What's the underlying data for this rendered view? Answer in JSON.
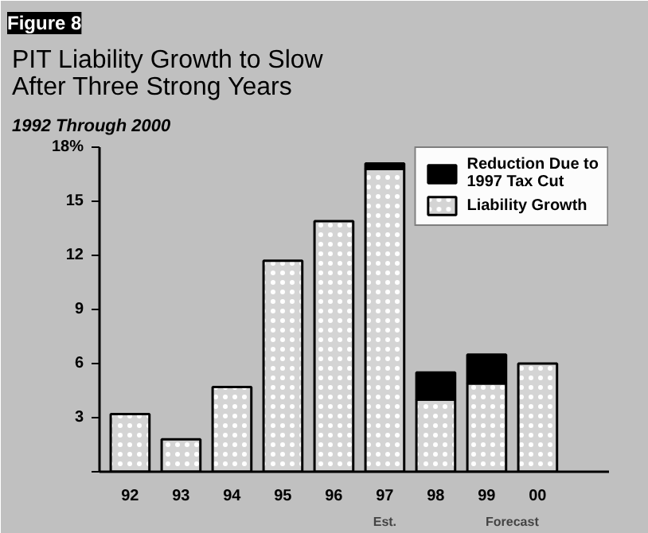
{
  "chart_data": {
    "type": "bar",
    "stacked": true,
    "title": "PIT Liability Growth to Slow\nAfter Three Strong Years",
    "subtitle": "1992 Through 2000",
    "annotations": [
      "Figure 8",
      "Est.",
      "Forecast"
    ],
    "categories": [
      "92",
      "93",
      "94",
      "95",
      "96",
      "97",
      "98",
      "99",
      "00"
    ],
    "series": [
      {
        "name": "Liability Growth",
        "color": "#d4d4d4",
        "values": [
          3.2,
          1.8,
          4.7,
          11.7,
          13.9,
          16.8,
          4.0,
          4.9,
          6.0
        ]
      },
      {
        "name": "Reduction Due to\n1997 Tax Cut",
        "color": "#000000",
        "values": [
          null,
          null,
          null,
          null,
          null,
          0.3,
          1.5,
          1.6,
          null
        ]
      }
    ],
    "ylim": [
      0,
      18
    ],
    "yticks": [
      {
        "value": 0,
        "label": null
      },
      3,
      6,
      9,
      12,
      15,
      {
        "value": 18,
        "label": "18%"
      }
    ],
    "grid": false,
    "legend": "top right"
  }
}
